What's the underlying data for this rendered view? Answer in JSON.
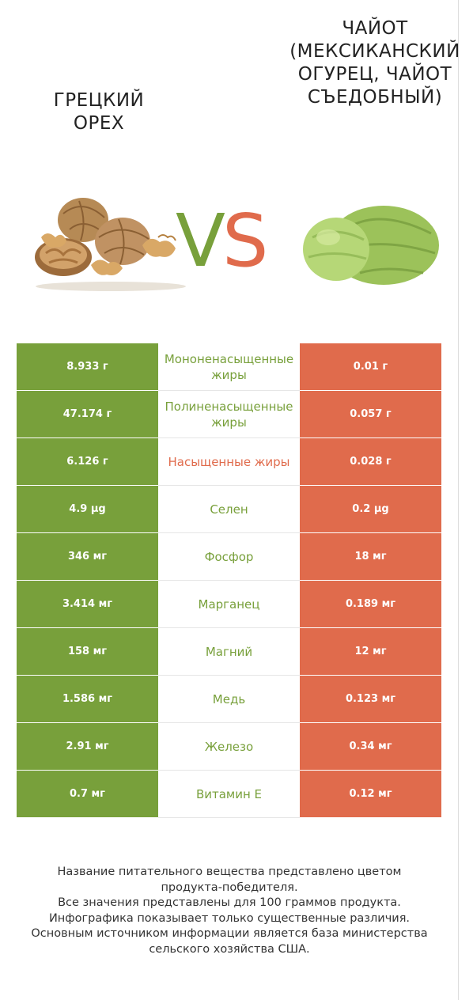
{
  "header": {
    "left_title": "ГРЕЦКИЙ ОРЕХ",
    "right_title": "ЧАЙОТ (МЕКСИКАНСКИЙ ОГУРЕЦ, ЧАЙОТ СЪЕДОБНЫЙ)",
    "vs_v": "V",
    "vs_s": "S"
  },
  "colors": {
    "left": "#78a03b",
    "right": "#e06b4c"
  },
  "rows": [
    {
      "left": "8.933 г",
      "nutrient": "Мононенасыщенные жиры",
      "right": "0.01 г",
      "winner": "left"
    },
    {
      "left": "47.174 г",
      "nutrient": "Полиненасыщенные жиры",
      "right": "0.057 г",
      "winner": "left"
    },
    {
      "left": "6.126 г",
      "nutrient": "Насыщенные жиры",
      "right": "0.028 г",
      "winner": "right"
    },
    {
      "left": "4.9 µg",
      "nutrient": "Селен",
      "right": "0.2 µg",
      "winner": "left"
    },
    {
      "left": "346 мг",
      "nutrient": "Фосфор",
      "right": "18 мг",
      "winner": "left"
    },
    {
      "left": "3.414 мг",
      "nutrient": "Марганец",
      "right": "0.189 мг",
      "winner": "left"
    },
    {
      "left": "158 мг",
      "nutrient": "Магний",
      "right": "12 мг",
      "winner": "left"
    },
    {
      "left": "1.586 мг",
      "nutrient": "Медь",
      "right": "0.123 мг",
      "winner": "left"
    },
    {
      "left": "2.91 мг",
      "nutrient": "Железо",
      "right": "0.34 мг",
      "winner": "left"
    },
    {
      "left": "0.7 мг",
      "nutrient": "Витамин E",
      "right": "0.12 мг",
      "winner": "left"
    }
  ],
  "footer": [
    "Название питательного вещества представлено цветом",
    "продукта-победителя.",
    "Все значения представлены для 100 граммов продукта.",
    "Инфографика показывает только существенные различия.",
    "Основным источником информации является база министерства",
    "сельского хозяйства США."
  ]
}
